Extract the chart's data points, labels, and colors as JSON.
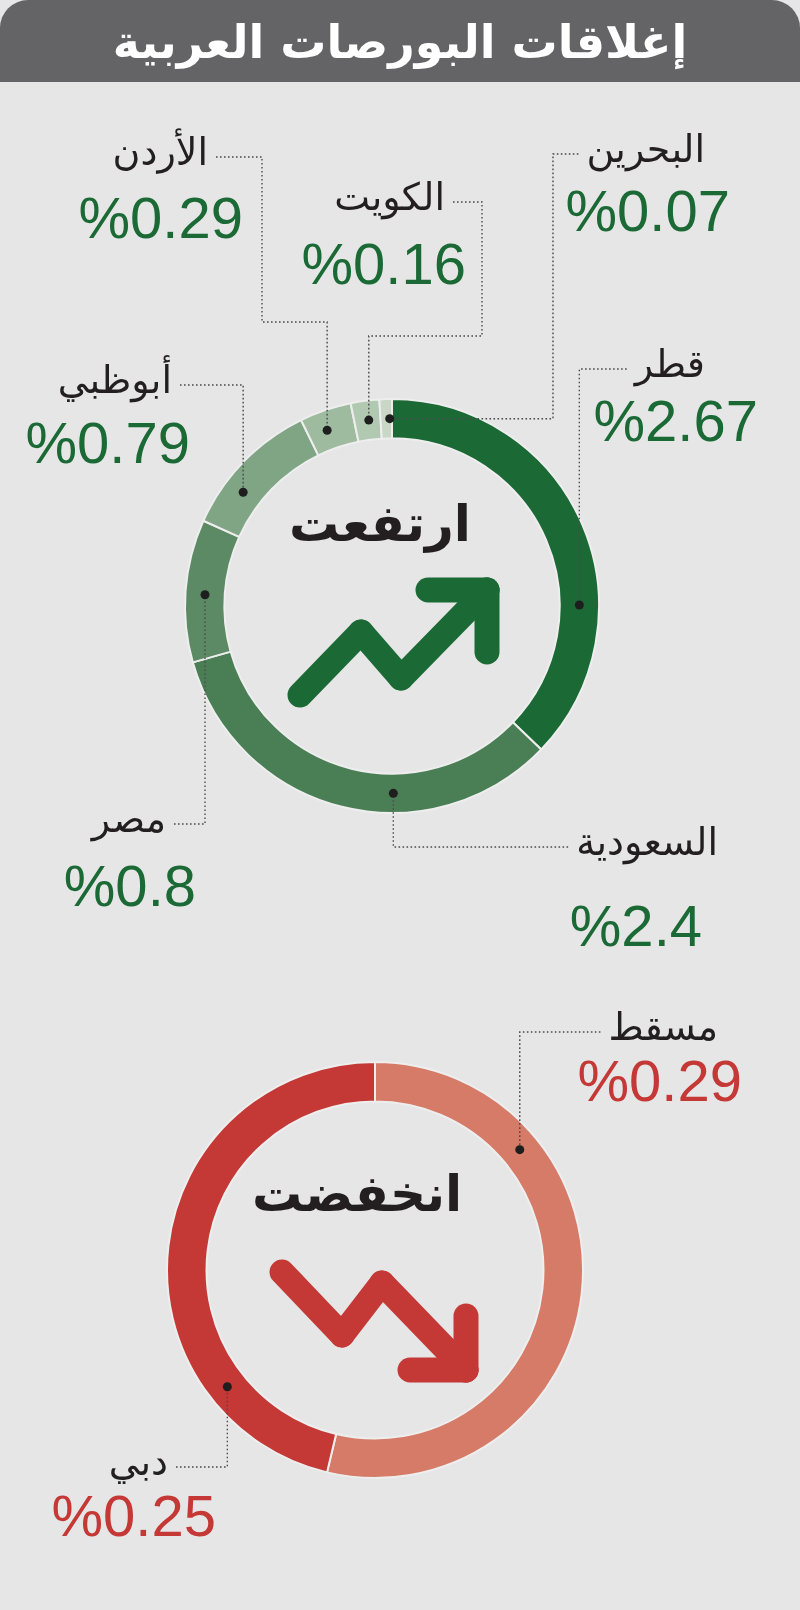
{
  "chart_data": [
    {
      "type": "donut",
      "title": "إغلاقات البورصات العربية",
      "subtitle": "ارتفعت",
      "categories": [
        "قطر",
        "السعودية",
        "مصر",
        "أبوظبي",
        "الأردن",
        "الكويت",
        "البحرين"
      ],
      "values": [
        2.67,
        2.4,
        0.8,
        0.79,
        0.29,
        0.16,
        0.07
      ],
      "colors": [
        "#1b6a36",
        "#4a7f56",
        "#5b8a64",
        "#80a585",
        "#9ebb9f",
        "#b2c9b1",
        "#c8d7c6"
      ],
      "value_labels": [
        "%2.67",
        "%2.4",
        "%0.8",
        "%0.79",
        "%0.29",
        "%0.16",
        "%0.07"
      ]
    },
    {
      "type": "donut",
      "subtitle": "انخفضت",
      "categories": [
        "مسقط",
        "دبي"
      ],
      "values": [
        0.29,
        0.25
      ],
      "colors": [
        "#d57b67",
        "#c43936"
      ],
      "value_labels": [
        "%0.29",
        "%0.25"
      ]
    }
  ]
}
